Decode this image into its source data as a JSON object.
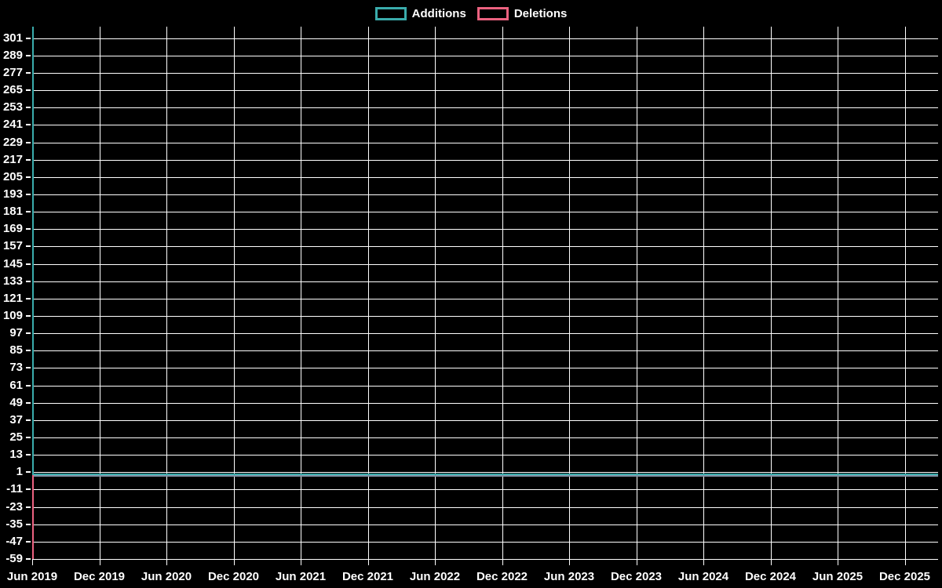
{
  "legend": {
    "items": [
      {
        "label": "Additions",
        "color": "#3aacac"
      },
      {
        "label": "Deletions",
        "color": "#ec6280"
      }
    ]
  },
  "chart_data": {
    "type": "line",
    "title": "",
    "xlabel": "",
    "ylabel": "",
    "x_tick_labels": [
      "Jun 2019",
      "Dec 2019",
      "Jun 2020",
      "Dec 2020",
      "Jun 2021",
      "Dec 2021",
      "Jun 2022",
      "Dec 2022",
      "Jun 2023",
      "Dec 2023",
      "Jun 2024",
      "Dec 2024",
      "Jun 2025",
      "Dec 2025"
    ],
    "y_tick_labels": [
      301,
      289,
      277,
      265,
      253,
      241,
      229,
      217,
      205,
      193,
      181,
      169,
      157,
      145,
      133,
      121,
      109,
      97,
      85,
      73,
      61,
      49,
      37,
      25,
      13,
      1,
      -11,
      -23,
      -35,
      -47,
      -59
    ],
    "ylim": [
      -59,
      309
    ],
    "grid": true,
    "legend_position": "top",
    "background_color": "#000000",
    "grid_color": "#ffffff",
    "text_color": "#ffffff",
    "zero_line_color": "#8494a6",
    "series": [
      {
        "name": "Additions",
        "color": "#3aacac",
        "values": [
          309,
          0,
          0,
          0,
          0,
          0,
          0,
          0,
          0,
          0,
          0,
          0,
          0,
          0
        ]
      },
      {
        "name": "Deletions",
        "color": "#ec6280",
        "values": [
          -59,
          0,
          0,
          0,
          0,
          0,
          0,
          0,
          0,
          0,
          0,
          0,
          0,
          0
        ]
      }
    ]
  }
}
